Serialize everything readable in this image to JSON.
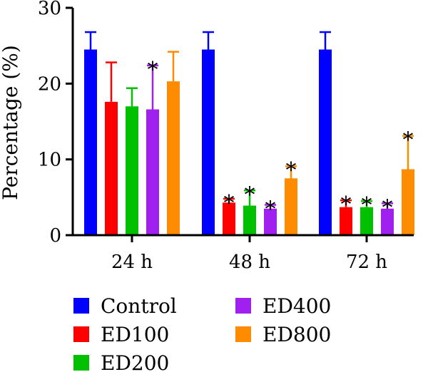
{
  "chart_data": {
    "type": "bar",
    "title": "",
    "xlabel": "",
    "ylabel": "Percentage (%)",
    "ylim": [
      0,
      30
    ],
    "yticks": [
      0,
      10,
      20,
      30
    ],
    "categories": [
      "24 h",
      "48 h",
      "72 h"
    ],
    "legend_position": "bottom",
    "series": [
      {
        "name": "Control",
        "color": "#0000ff",
        "values": [
          24.5,
          24.5,
          24.5
        ],
        "errors": [
          2.3,
          2.3,
          2.3
        ],
        "significant": [
          false,
          false,
          false
        ]
      },
      {
        "name": "ED100",
        "color": "#ff0000",
        "values": [
          17.6,
          4.3,
          3.7
        ],
        "errors": [
          5.2,
          0.5,
          0.9
        ],
        "significant": [
          false,
          true,
          true
        ]
      },
      {
        "name": "ED200",
        "color": "#00c000",
        "values": [
          17.0,
          3.9,
          3.7
        ],
        "errors": [
          2.4,
          2.0,
          0.8
        ],
        "significant": [
          false,
          true,
          true
        ]
      },
      {
        "name": "ED400",
        "color": "#a020f0",
        "values": [
          16.6,
          3.5,
          3.5
        ],
        "errors": [
          5.8,
          0.5,
          0.7
        ],
        "significant": [
          true,
          true,
          true
        ]
      },
      {
        "name": "ED800",
        "color": "#ff8c00",
        "values": [
          20.3,
          7.5,
          8.7
        ],
        "errors": [
          3.9,
          1.6,
          4.4
        ],
        "significant": [
          false,
          true,
          true
        ]
      }
    ],
    "significance_marker": "*"
  }
}
